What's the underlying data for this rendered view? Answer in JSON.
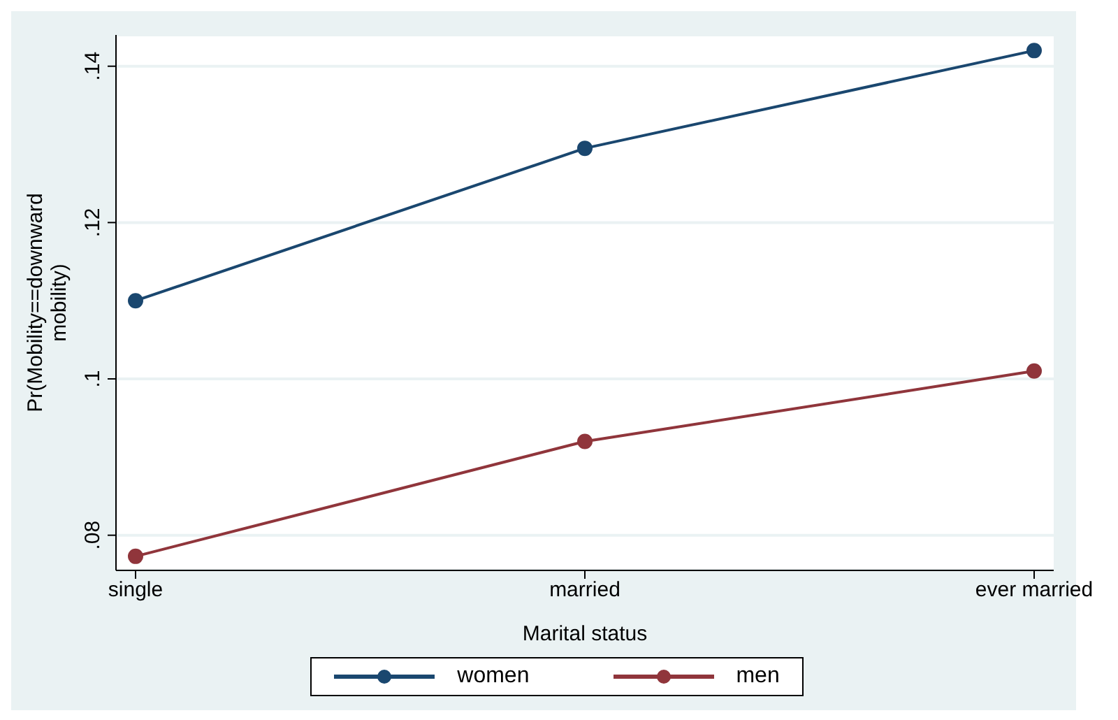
{
  "chart_data": {
    "type": "line",
    "xlabel": "Marital status",
    "ylabel": "Pr(Mobility==downward mobility)",
    "categories": [
      "single",
      "married",
      "ever married"
    ],
    "series": [
      {
        "name": "women",
        "color": "#1a476f",
        "values": [
          0.11,
          0.1295,
          0.142
        ]
      },
      {
        "name": "men",
        "color": "#90353b",
        "values": [
          0.0773,
          0.092,
          0.101
        ]
      }
    ],
    "ylim": [
      0.0755,
      0.144
    ],
    "yticks": [
      {
        "value": 0.08,
        "label": ".08"
      },
      {
        "value": 0.1,
        "label": ".1"
      },
      {
        "value": 0.12,
        "label": ".12"
      },
      {
        "value": 0.14,
        "label": ".14"
      }
    ],
    "grid": "y",
    "legend": "bottom",
    "marker": "circle",
    "line_style": "solid"
  }
}
